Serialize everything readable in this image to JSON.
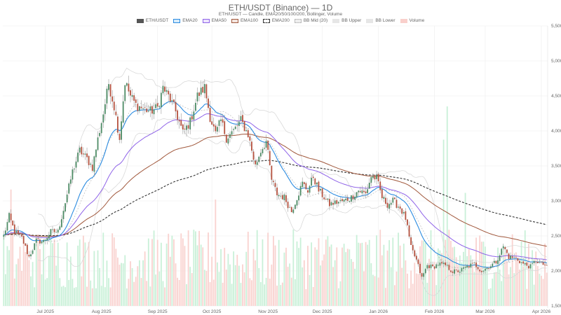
{
  "header": {
    "title": "ETH/USDT (Binance) — 1D",
    "subtitle": "ETH/USDT — Candle, EMA20/50/100/200, Bollinger, Volume"
  },
  "legend": [
    {
      "label": "ETH/USDT",
      "fill": "#555555",
      "stroke": "#555555",
      "dash": false
    },
    {
      "label": "EMA20",
      "fill": "#d6ebfb",
      "stroke": "#2b8be0",
      "dash": false
    },
    {
      "label": "EMA50",
      "fill": "#ece4fd",
      "stroke": "#8f63e8",
      "dash": false
    },
    {
      "label": "EMA100",
      "fill": "#f3e4de",
      "stroke": "#a0573b",
      "dash": false
    },
    {
      "label": "EMA200",
      "fill": "#ffffff",
      "stroke": "#333333",
      "dash": true
    },
    {
      "label": "BB Mid (20)",
      "fill": "#eeeeee",
      "stroke": "#bbbbbb",
      "dash": true
    },
    {
      "label": "BB Upper",
      "fill": "#e6e6e6",
      "stroke": "#e6e6e6",
      "dash": false
    },
    {
      "label": "BB Lower",
      "fill": "#e6e6e6",
      "stroke": "#e6e6e6",
      "dash": false
    },
    {
      "label": "Volume",
      "fill": "#f9cfcb",
      "stroke": "#f9cfcb",
      "dash": false
    }
  ],
  "colors": {
    "up": "#4e8c66",
    "down": "#b5523f",
    "vol_up": "#c9f0d8",
    "vol_down": "#f9d2cf",
    "ema20": "#2b8be0",
    "ema50": "#8f63e8",
    "ema100": "#a0573b",
    "ema200": "#333333",
    "bb_mid": "#bbbbbb",
    "bb_band": "#d9d9d9",
    "grid": "#eeeeee"
  },
  "chart_data": {
    "type": "candlestick",
    "title": "ETH/USDT (Binance) — 1D",
    "subtitle": "ETH/USDT — Candle, EMA20/50/100/200, Bollinger, Volume",
    "xlabel": "",
    "ylabel": "",
    "ylim": [
      1500,
      5500
    ],
    "y_ticks": [
      1500,
      2000,
      2500,
      3000,
      3500,
      4000,
      4500,
      5000,
      5500
    ],
    "y_tick_labels": [
      "1,500",
      "2,000",
      "2,500",
      "3,000",
      "3,500",
      "4,000",
      "4,500",
      "5,000",
      "5,500"
    ],
    "y_axis_position": "right",
    "x_ticks": [
      {
        "label": "Jul 2025",
        "day": 23
      },
      {
        "label": "Aug 2025",
        "day": 54
      },
      {
        "label": "Sep 2025",
        "day": 85
      },
      {
        "label": "Oct 2025",
        "day": 115
      },
      {
        "label": "Nov 2025",
        "day": 146
      },
      {
        "label": "Dec 2025",
        "day": 176
      },
      {
        "label": "Jan 2026",
        "day": 207
      },
      {
        "label": "Feb 2026",
        "day": 238
      },
      {
        "label": "Mar 2026",
        "day": 266
      },
      {
        "label": "Apr 2026",
        "day": 297
      }
    ],
    "days": 301,
    "grid": true,
    "legend_position": "top",
    "series_names": [
      "ETH/USDT",
      "EMA20",
      "EMA50",
      "EMA100",
      "EMA200",
      "BB Mid (20)",
      "BB Upper",
      "BB Lower",
      "Volume"
    ],
    "close_anchors": [
      [
        0,
        2500
      ],
      [
        3,
        2780
      ],
      [
        6,
        2560
      ],
      [
        10,
        2470
      ],
      [
        14,
        2200
      ],
      [
        18,
        2430
      ],
      [
        22,
        2420
      ],
      [
        26,
        2560
      ],
      [
        30,
        2560
      ],
      [
        34,
        2980
      ],
      [
        38,
        3420
      ],
      [
        42,
        3720
      ],
      [
        46,
        3600
      ],
      [
        49,
        3480
      ],
      [
        52,
        3880
      ],
      [
        55,
        4250
      ],
      [
        58,
        4680
      ],
      [
        61,
        4350
      ],
      [
        64,
        3900
      ],
      [
        67,
        4700
      ],
      [
        70,
        4500
      ],
      [
        73,
        4370
      ],
      [
        77,
        4320
      ],
      [
        81,
        4280
      ],
      [
        85,
        4330
      ],
      [
        88,
        4620
      ],
      [
        92,
        4450
      ],
      [
        95,
        4280
      ],
      [
        99,
        3970
      ],
      [
        103,
        4130
      ],
      [
        107,
        4500
      ],
      [
        111,
        4620
      ],
      [
        114,
        4200
      ],
      [
        117,
        3950
      ],
      [
        120,
        4150
      ],
      [
        123,
        3900
      ],
      [
        127,
        4000
      ],
      [
        131,
        4150
      ],
      [
        135,
        3950
      ],
      [
        139,
        3500
      ],
      [
        142,
        3720
      ],
      [
        145,
        3850
      ],
      [
        148,
        3300
      ],
      [
        151,
        3100
      ],
      [
        155,
        3050
      ],
      [
        159,
        2850
      ],
      [
        162,
        3050
      ],
      [
        165,
        3250
      ],
      [
        168,
        3150
      ],
      [
        171,
        3350
      ],
      [
        174,
        3150
      ],
      [
        177,
        3050
      ],
      [
        180,
        2950
      ],
      [
        184,
        2980
      ],
      [
        188,
        3000
      ],
      [
        192,
        3050
      ],
      [
        196,
        3150
      ],
      [
        200,
        3100
      ],
      [
        203,
        3350
      ],
      [
        206,
        3320
      ],
      [
        209,
        3050
      ],
      [
        212,
        2950
      ],
      [
        215,
        3000
      ],
      [
        219,
        2900
      ],
      [
        222,
        2750
      ],
      [
        225,
        2330
      ],
      [
        228,
        2150
      ],
      [
        231,
        1900
      ],
      [
        234,
        2080
      ],
      [
        237,
        2050
      ],
      [
        240,
        2100
      ],
      [
        244,
        2080
      ],
      [
        248,
        1990
      ],
      [
        252,
        2000
      ],
      [
        256,
        2060
      ],
      [
        260,
        2100
      ],
      [
        264,
        2000
      ],
      [
        268,
        2060
      ],
      [
        272,
        2130
      ],
      [
        276,
        2350
      ],
      [
        279,
        2200
      ],
      [
        283,
        2180
      ],
      [
        287,
        2100
      ],
      [
        291,
        2060
      ],
      [
        294,
        2150
      ],
      [
        297,
        2100
      ],
      [
        300,
        2080
      ]
    ],
    "volume_spikes": [
      {
        "day": 4,
        "rel": 1.75
      },
      {
        "day": 243,
        "rel": 2.5
      },
      {
        "day": 245,
        "rel": 3.0
      },
      {
        "day": 117,
        "rel": 1.6
      },
      {
        "day": 255,
        "rel": 1.7
      }
    ]
  }
}
